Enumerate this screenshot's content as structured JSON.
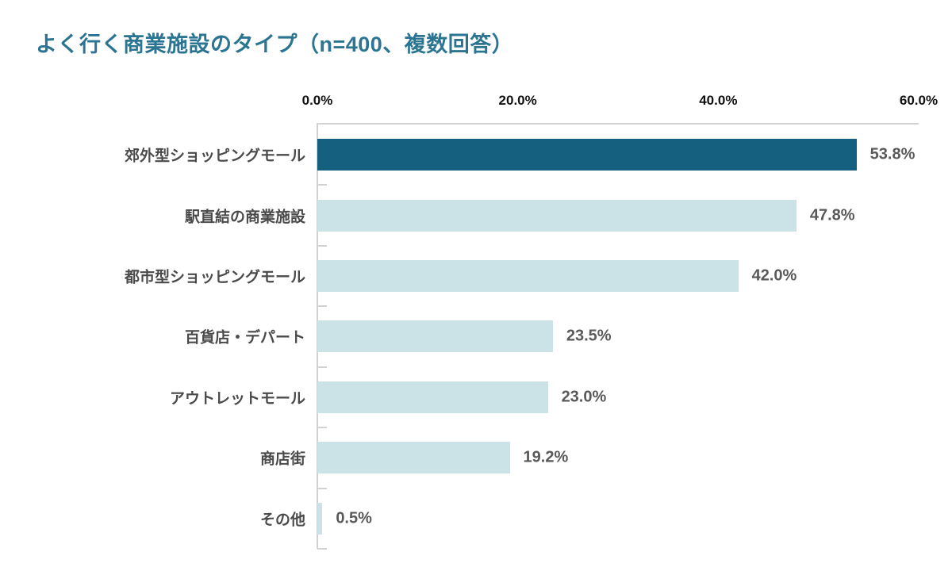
{
  "title": "よく行く商業施設のタイプ（n=400、複数回答）",
  "colors": {
    "highlight_bar": "#15607e",
    "default_bar": "#cbe2e6",
    "title_text": "#2b7593",
    "category_text": "#4a4a4a",
    "value_text": "#595959",
    "axis_line": "#d2d2d2",
    "axis_tick_text": "#111111"
  },
  "chart_data": {
    "type": "bar",
    "orientation": "horizontal",
    "title": "よく行く商業施設のタイプ（n=400、複数回答）",
    "categories": [
      "郊外型ショッピングモール",
      "駅直結の商業施設",
      "都市型ショッピングモール",
      "百貨店・デパート",
      "アウトレットモール",
      "商店街",
      "その他"
    ],
    "values": [
      53.8,
      47.8,
      42.0,
      23.5,
      23.0,
      19.2,
      0.5
    ],
    "value_labels": [
      "53.8%",
      "47.8%",
      "42.0%",
      "23.5%",
      "23.0%",
      "19.2%",
      "0.5%"
    ],
    "highlight_index": 0,
    "x_axis": {
      "position": "top",
      "tick_labels": [
        "0.0%",
        "20.0%",
        "40.0%",
        "60.0%"
      ],
      "tick_values": [
        0,
        20,
        40,
        60
      ],
      "range": [
        0,
        60
      ]
    },
    "ylabel": "",
    "xlabel": "",
    "grid": false,
    "legend": false
  }
}
